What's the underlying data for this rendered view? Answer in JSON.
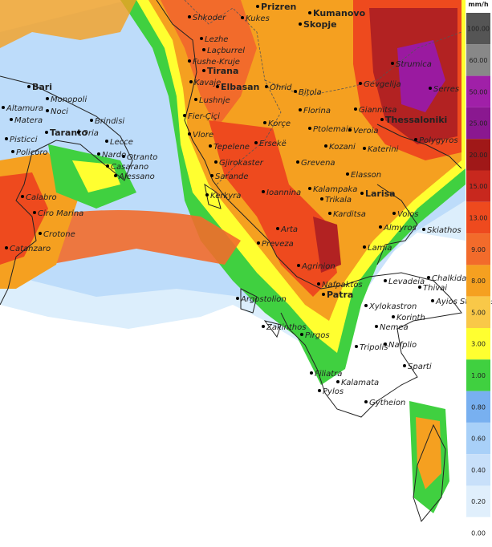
{
  "places": [
    "Prizren",
    "Kukes",
    "Kumanovo",
    "Skopje",
    "Shkoder",
    "Lezhe",
    "Laçburrel",
    "Fushe-Kruje",
    "Tirana",
    "Kavaje",
    "Elbasan",
    "Lushnje",
    "Fier-Çiçi",
    "Vlore",
    "Tepelene",
    "Gjirokaster",
    "Sarande",
    "Kerkyra",
    "Ohrid",
    "Korçe",
    "Ersekë",
    "Bitola",
    "Florina",
    "Ptolemais",
    "Kozani",
    "Grevena",
    "Ioannina",
    "Kalampaka",
    "Trikala",
    "Karditsa",
    "Larisa",
    "Volos",
    "Almyros",
    "Skiathos",
    "Arta",
    "Preveza",
    "Agrinion",
    "Lamia",
    "Nafpaktos",
    "Patra",
    "Levadeia",
    "Thivai",
    "Chalkida",
    "Ayios Stefanos",
    "Argostolion",
    "Zakinthos",
    "Pirgos",
    "Xylokastron",
    "Korinth",
    "Nemea",
    "Tripolis",
    "Nafplio",
    "Sparti",
    "Filiatra",
    "Pylos",
    "Kalamata",
    "Gytheion",
    "Strumica",
    "Gevgelija",
    "Giannitsa",
    "Thessaloniki",
    "Veroia",
    "Katerini",
    "Elasson",
    "Polygyros",
    "Serres",
    "Bari",
    "Monopoli",
    "Altamura",
    "Noci",
    "Matera",
    "Brindisi",
    "Taranto",
    "Oria",
    "Lecce",
    "Pisticci",
    "Policoro",
    "Nardo",
    "Otranto",
    "Casarano",
    "Alessano",
    "Calabro",
    "Ciro Marina",
    "Crotone",
    "Catanzaro"
  ],
  "legend": {
    "unit": "mm/h",
    "labels": [
      "100.00",
      "60.00",
      "50.00",
      "25.00",
      "20.00",
      "15.00",
      "13.00",
      "9.00",
      "8.00",
      "5.00",
      "3.00",
      "1.00",
      "0.80",
      "0.60",
      "0.40",
      "0.20",
      "0.00"
    ]
  }
}
